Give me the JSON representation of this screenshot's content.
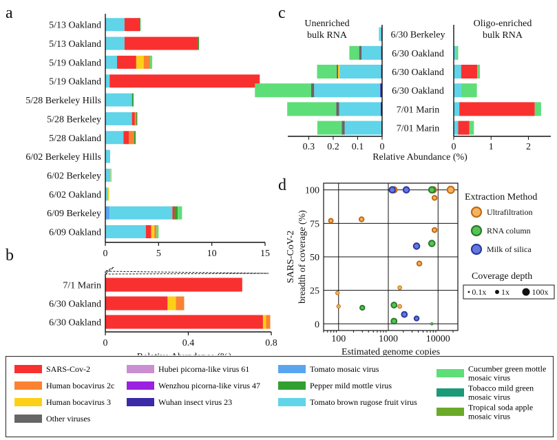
{
  "panel_letters": {
    "a": "a",
    "b": "b",
    "c": "c",
    "d": "d"
  },
  "colors": {
    "SARS-Cov-2": "#f93030",
    "Human bocavirus 2c": "#fb8230",
    "Human bocavirus 3": "#fdd018",
    "Other viruses": "#666666",
    "Hubei picorna-like virus 61": "#c98fd0",
    "Wenzhou picorna-like virus 47": "#9b20e0",
    "Wuhan insect virus 23": "#3a2aa8",
    "Tomato mosaic virus": "#5aa6ee",
    "Pepper mild mottle virus": "#30a030",
    "Tomato brown rugose fruit virus": "#60d4e8",
    "Cucumber green mottle mosaic virus": "#5ede78",
    "Tobacco mild green mosaic virus": "#1a9a78",
    "Tropical soda apple mosaic virus": "#6aaa28"
  },
  "key": {
    "columns": [
      [
        "SARS-Cov-2",
        "Human bocavirus 2c",
        "Human bocavirus 3",
        "Other viruses"
      ],
      [
        "Hubei picorna-like virus 61",
        "Wenzhou picorna-like virus 47",
        "Wuhan insect virus 23"
      ],
      [
        "Tomato mosaic virus",
        "Pepper mild mottle virus",
        "Tomato brown rugose fruit virus"
      ],
      [
        "Cucumber green mottle mosaic virus",
        "Tobacco mild green mosaic virus",
        "Tropical soda apple mosaic virus"
      ]
    ],
    "labels": {
      "Cucumber green mottle mosaic virus": [
        "Cucumber green mottle",
        "mosaic virus"
      ],
      "Tobacco mild green mosaic virus": [
        "Tobacco mild green",
        "mosaic virus"
      ],
      "Tropical soda apple mosaic virus": [
        "Tropical soda apple",
        "mosaic virus"
      ]
    }
  },
  "chart_data": [
    {
      "id": "a",
      "type": "bar",
      "orientation": "horizontal",
      "stacked": true,
      "xlabel": "",
      "xlim": [
        0,
        15
      ],
      "xticks": [
        0,
        5,
        10,
        15
      ],
      "categories": [
        "5/13 Oakland",
        "5/13 Oakland",
        "5/19 Oakland",
        "5/19 Oakland",
        "5/28 Berkeley Hills",
        "5/28 Berkeley",
        "5/28 Oakland",
        "6/02 Berkeley Hills",
        "6/02 Berkeley",
        "6/02 Oakland",
        "6/09 Berkeley",
        "6/09 Oakland"
      ],
      "stacks": [
        [
          [
            "Tomato brown rugose fruit virus",
            1.8
          ],
          [
            "SARS-Cov-2",
            1.4
          ],
          [
            "Pepper mild mottle virus",
            0.1
          ]
        ],
        [
          [
            "Tomato brown rugose fruit virus",
            1.8
          ],
          [
            "SARS-Cov-2",
            6.9
          ],
          [
            "Pepper mild mottle virus",
            0.1
          ]
        ],
        [
          [
            "Tomato brown rugose fruit virus",
            1.1
          ],
          [
            "SARS-Cov-2",
            1.8
          ],
          [
            "Human bocavirus 3",
            0.7
          ],
          [
            "Human bocavirus 2c",
            0.6
          ],
          [
            "Cucumber green mottle mosaic virus",
            0.2
          ]
        ],
        [
          [
            "Tomato brown rugose fruit virus",
            0.4
          ],
          [
            "SARS-Cov-2",
            14.1
          ]
        ],
        [
          [
            "Tomato brown rugose fruit virus",
            2.5
          ],
          [
            "Pepper mild mottle virus",
            0.15
          ]
        ],
        [
          [
            "Tomato brown rugose fruit virus",
            2.5
          ],
          [
            "SARS-Cov-2",
            0.25
          ],
          [
            "Human bocavirus 2c",
            0.15
          ],
          [
            "Pepper mild mottle virus",
            0.1
          ]
        ],
        [
          [
            "Tomato brown rugose fruit virus",
            1.7
          ],
          [
            "SARS-Cov-2",
            0.5
          ],
          [
            "Human bocavirus 2c",
            0.5
          ],
          [
            "Pepper mild mottle virus",
            0.15
          ]
        ],
        [
          [
            "Tomato brown rugose fruit virus",
            0.45
          ]
        ],
        [
          [
            "Tomato brown rugose fruit virus",
            0.5
          ],
          [
            "Human bocavirus 3",
            0.1
          ]
        ],
        [
          [
            "Tomato brown rugose fruit virus",
            0.25
          ],
          [
            "Human bocavirus 3",
            0.1
          ]
        ],
        [
          [
            "Tomato mosaic virus",
            0.4
          ],
          [
            "Tomato brown rugose fruit virus",
            5.9
          ],
          [
            "SARS-Cov-2",
            0.2
          ],
          [
            "Pepper mild mottle virus",
            0.3
          ],
          [
            "Cucumber green mottle mosaic virus",
            0.4
          ]
        ],
        [
          [
            "Tomato brown rugose fruit virus",
            3.8
          ],
          [
            "SARS-Cov-2",
            0.5
          ],
          [
            "Human bocavirus 3",
            0.3
          ],
          [
            "Human bocavirus 2c",
            0.2
          ],
          [
            "Cucumber green mottle mosaic virus",
            0.2
          ]
        ]
      ]
    },
    {
      "id": "b",
      "type": "bar",
      "orientation": "horizontal",
      "stacked": true,
      "xlabel": "Relative Abundance (%)",
      "xlim": [
        0,
        0.8
      ],
      "xticks": [
        0,
        0.4,
        0.8
      ],
      "categories": [
        "7/1 Marin",
        "6/30 Oakland",
        "6/30 Oakland"
      ],
      "stacks": [
        [
          [
            "SARS-Cov-2",
            0.66
          ]
        ],
        [
          [
            "SARS-Cov-2",
            0.3
          ],
          [
            "Human bocavirus 3",
            0.04
          ],
          [
            "Human bocavirus 2c",
            0.04
          ]
        ],
        [
          [
            "SARS-Cov-2",
            0.76
          ],
          [
            "Human bocavirus 3",
            0.015
          ],
          [
            "Human bocavirus 2c",
            0.02
          ]
        ]
      ]
    },
    {
      "id": "c",
      "type": "bar",
      "orientation": "horizontal",
      "stacked": true,
      "xlabel": "Relative Abundance (%)",
      "categories": [
        "6/30 Berkeley",
        "6/30 Oakland",
        "6/30 Oakland",
        "6/30 Oakland",
        "7/01 Marin",
        "7/01 Marin"
      ],
      "left": {
        "header": [
          "Unenriched",
          "bulk RNA"
        ],
        "xlim": [
          0,
          0.38
        ],
        "xticks": [
          0.3,
          0.2,
          0.1,
          0
        ],
        "xtick_labels": [
          "0.3",
          "0.2",
          "0.1",
          "0"
        ],
        "stacks": [
          [
            [
              "Wuhan insect virus 23",
              0.003
            ],
            [
              "Tomato brown rugose fruit virus",
              0.01
            ]
          ],
          [
            [
              "Wuhan insect virus 23",
              0.004
            ],
            [
              "Tomato brown rugose fruit virus",
              0.08
            ],
            [
              "Other viruses",
              0.01
            ],
            [
              "Cucumber green mottle mosaic virus",
              0.04
            ]
          ],
          [
            [
              "Wuhan insect virus 23",
              0.004
            ],
            [
              "Tomato brown rugose fruit virus",
              0.17
            ],
            [
              "Human bocavirus 3",
              0.006
            ],
            [
              "Other viruses",
              0.006
            ],
            [
              "Cucumber green mottle mosaic virus",
              0.08
            ]
          ],
          [
            [
              "Wuhan insect virus 23",
              0.008
            ],
            [
              "Tomato brown rugose fruit virus",
              0.27
            ],
            [
              "Other viruses",
              0.012
            ],
            [
              "Cucumber green mottle mosaic virus",
              0.23
            ]
          ],
          [
            [
              "Wuhan insect virus 23",
              0.006
            ],
            [
              "Tomato brown rugose fruit virus",
              0.17
            ],
            [
              "Other viruses",
              0.012
            ],
            [
              "Cucumber green mottle mosaic virus",
              0.2
            ]
          ],
          [
            [
              "Wuhan insect virus 23",
              0.003
            ],
            [
              "Tomato brown rugose fruit virus",
              0.15
            ],
            [
              "Other viruses",
              0.012
            ],
            [
              "Cucumber green mottle mosaic virus",
              0.1
            ]
          ]
        ]
      },
      "right": {
        "header": [
          "Oligo-enriched",
          "bulk RNA"
        ],
        "xlim": [
          0,
          2.6
        ],
        "xticks": [
          0,
          1,
          2
        ],
        "xtick_labels": [
          "0",
          "1",
          "2"
        ],
        "stacks": [
          [],
          [
            [
              "Tomato brown rugose fruit virus",
              0.07
            ],
            [
              "Cucumber green mottle mosaic virus",
              0.05
            ]
          ],
          [
            [
              "Tomato brown rugose fruit virus",
              0.2
            ],
            [
              "SARS-Cov-2",
              0.43
            ],
            [
              "Cucumber green mottle mosaic virus",
              0.07
            ]
          ],
          [
            [
              "Tomato brown rugose fruit virus",
              0.2
            ],
            [
              "Cucumber green mottle mosaic virus",
              0.42
            ]
          ],
          [
            [
              "Tomato brown rugose fruit virus",
              0.15
            ],
            [
              "SARS-Cov-2",
              2.02
            ],
            [
              "Cucumber green mottle mosaic virus",
              0.17
            ]
          ],
          [
            [
              "Tomato brown rugose fruit virus",
              0.12
            ],
            [
              "SARS-Cov-2",
              0.3
            ],
            [
              "Cucumber green mottle mosaic virus",
              0.12
            ]
          ]
        ]
      }
    },
    {
      "id": "d",
      "type": "scatter",
      "xlabel": "Estimated genome copies",
      "ylabel": [
        "SARS-CoV-2",
        "breadth of coverage (%)"
      ],
      "xscale": "log",
      "xlim": [
        50,
        25000
      ],
      "ylim": [
        -5,
        105
      ],
      "xticks": [
        100,
        1000,
        10000
      ],
      "xtick_labels": [
        "100",
        "1000",
        "10000"
      ],
      "yticks": [
        0,
        25,
        50,
        75,
        100
      ],
      "grid": true,
      "legend_title": "Extraction Method",
      "methods": [
        {
          "name": "Ultrafiltration",
          "fill": "#f6b25e",
          "edge": "#c06a14"
        },
        {
          "name": "RNA column",
          "fill": "#55c455",
          "edge": "#2a7a2a"
        },
        {
          "name": "Milk of silica",
          "fill": "#6677e0",
          "edge": "#2a3aa0"
        }
      ],
      "size_legend_title": "Coverage depth",
      "size_legend": [
        {
          "label": "0.1x",
          "depth": 0.1
        },
        {
          "label": "1x",
          "depth": 1
        },
        {
          "label": "100x",
          "depth": 100
        }
      ],
      "points": [
        {
          "x": 70,
          "y": 77,
          "method": "Ultrafiltration",
          "depth": 1
        },
        {
          "x": 95,
          "y": 23,
          "method": "Ultrafiltration",
          "depth": 0.5
        },
        {
          "x": 100,
          "y": 13,
          "method": "Ultrafiltration",
          "depth": 0.5
        },
        {
          "x": 290,
          "y": 78,
          "method": "Ultrafiltration",
          "depth": 1.5
        },
        {
          "x": 1300,
          "y": 100,
          "method": "Ultrafiltration",
          "depth": 10
        },
        {
          "x": 1700,
          "y": 27,
          "method": "Ultrafiltration",
          "depth": 0.7
        },
        {
          "x": 1700,
          "y": 13,
          "method": "Ultrafiltration",
          "depth": 0.7
        },
        {
          "x": 4200,
          "y": 45,
          "method": "Ultrafiltration",
          "depth": 1.5
        },
        {
          "x": 8000,
          "y": 100,
          "method": "Ultrafiltration",
          "depth": 10
        },
        {
          "x": 8500,
          "y": 94,
          "method": "Ultrafiltration",
          "depth": 1.5
        },
        {
          "x": 8500,
          "y": 70,
          "method": "Ultrafiltration",
          "depth": 1.5
        },
        {
          "x": 18000,
          "y": 100,
          "method": "Ultrafiltration",
          "depth": 30
        },
        {
          "x": 300,
          "y": 12,
          "method": "RNA column",
          "depth": 1.5
        },
        {
          "x": 1300,
          "y": 14,
          "method": "RNA column",
          "depth": 5
        },
        {
          "x": 1300,
          "y": 2,
          "method": "RNA column",
          "depth": 5
        },
        {
          "x": 7500,
          "y": 100,
          "method": "RNA column",
          "depth": 10
        },
        {
          "x": 7500,
          "y": 60,
          "method": "RNA column",
          "depth": 10
        },
        {
          "x": 7500,
          "y": 0,
          "method": "RNA column",
          "depth": 0.1
        },
        {
          "x": 1200,
          "y": 100,
          "method": "Milk of silica",
          "depth": 10
        },
        {
          "x": 2300,
          "y": 100,
          "method": "Milk of silica",
          "depth": 10
        },
        {
          "x": 2100,
          "y": 7,
          "method": "Milk of silica",
          "depth": 5
        },
        {
          "x": 3700,
          "y": 58,
          "method": "Milk of silica",
          "depth": 10
        },
        {
          "x": 3700,
          "y": 4,
          "method": "Milk of silica",
          "depth": 1.5
        }
      ]
    }
  ]
}
